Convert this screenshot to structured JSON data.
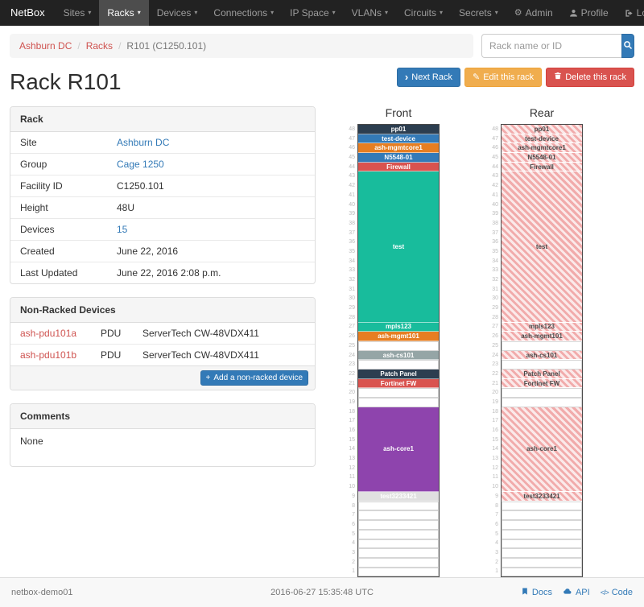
{
  "navbar": {
    "brand": "NetBox",
    "items": [
      {
        "label": "Sites"
      },
      {
        "label": "Racks",
        "active": true
      },
      {
        "label": "Devices"
      },
      {
        "label": "Connections"
      },
      {
        "label": "IP Space"
      },
      {
        "label": "VLANs"
      },
      {
        "label": "Circuits"
      },
      {
        "label": "Secrets"
      }
    ],
    "right": [
      {
        "label": "Admin",
        "icon": "gear-icon"
      },
      {
        "label": "Profile",
        "icon": "user-icon"
      },
      {
        "label": "Log out",
        "icon": "logout-icon"
      }
    ]
  },
  "breadcrumb": {
    "links": [
      "Ashburn DC",
      "Racks"
    ],
    "current": "R101 (C1250.101)"
  },
  "search": {
    "placeholder": "Rack name or ID"
  },
  "actions": {
    "next_rack": "Next Rack",
    "edit_rack": "Edit this rack",
    "delete_rack": "Delete this rack"
  },
  "page_title": "Rack R101",
  "rack_panel": {
    "title": "Rack",
    "rows": [
      {
        "label": "Site",
        "value": "Ashburn DC",
        "link": "blue"
      },
      {
        "label": "Group",
        "value": "Cage 1250",
        "link": "blue"
      },
      {
        "label": "Facility ID",
        "value": "C1250.101"
      },
      {
        "label": "Height",
        "value": "48U"
      },
      {
        "label": "Devices",
        "value": "15",
        "link": "blue"
      },
      {
        "label": "Created",
        "value": "June 22, 2016"
      },
      {
        "label": "Last Updated",
        "value": "June 22, 2016 2:08 p.m."
      }
    ]
  },
  "non_racked_panel": {
    "title": "Non-Racked Devices",
    "devices": [
      {
        "name": "ash-pdu101a",
        "type": "PDU",
        "model": "ServerTech CW-48VDX411"
      },
      {
        "name": "ash-pdu101b",
        "type": "PDU",
        "model": "ServerTech CW-48VDX411"
      }
    ],
    "add_button": "Add a non-racked device"
  },
  "comments_panel": {
    "title": "Comments",
    "body": "None"
  },
  "elevation": {
    "front_title": "Front",
    "rear_title": "Rear",
    "units_total": 48,
    "devices": [
      {
        "name": "pp01",
        "u_start": 48,
        "height": 1,
        "color": "#2c3e50"
      },
      {
        "name": "test-device",
        "u_start": 47,
        "height": 1,
        "color": "#337ab7"
      },
      {
        "name": "ash-mgmtcore1",
        "u_start": 46,
        "height": 1,
        "color": "#e67e22"
      },
      {
        "name": "N5548-01",
        "u_start": 45,
        "height": 1,
        "color": "#337ab7"
      },
      {
        "name": "Firewall",
        "u_start": 44,
        "height": 1,
        "color": "#d9534f"
      },
      {
        "name": "test",
        "u_start": 43,
        "height": 16,
        "color": "#18bc9c"
      },
      {
        "name": "mpls123",
        "u_start": 27,
        "height": 1,
        "color": "#18bc9c"
      },
      {
        "name": "ash-mgmt101",
        "u_start": 26,
        "height": 1,
        "color": "#e67e22"
      },
      {
        "name": "ash-cs101",
        "u_start": 24,
        "height": 1,
        "color": "#95a5a6"
      },
      {
        "name": "Patch Panel",
        "u_start": 22,
        "height": 1,
        "color": "#2c3e50"
      },
      {
        "name": "Fortinet FW",
        "u_start": 21,
        "height": 1,
        "color": "#d9534f"
      },
      {
        "name": "ash-core1",
        "u_start": 18,
        "height": 9,
        "color": "#8e44ad"
      },
      {
        "name": "test3233421",
        "u_start": 9,
        "height": 1,
        "color": "#e0e0e0",
        "text_color": "#ffffff"
      }
    ]
  },
  "footer": {
    "hostname": "netbox-demo01",
    "timestamp": "2016-06-27 15:35:48 UTC",
    "links": [
      {
        "label": "Docs",
        "icon": "book-icon"
      },
      {
        "label": "API",
        "icon": "cloud-icon"
      },
      {
        "label": "Code",
        "icon": "code-icon"
      }
    ]
  },
  "colors": {
    "navbar_bg": "#222222",
    "navbar_active_bg": "#4d4d4d",
    "primary": "#337ab7",
    "warning": "#f0ad4e",
    "danger": "#d9534f",
    "breadcrumb_link": "#cf5350",
    "table_link": "#337ab7",
    "rear_stripe_light": "#fbe9e9",
    "rear_stripe_dark": "#f1abab"
  }
}
